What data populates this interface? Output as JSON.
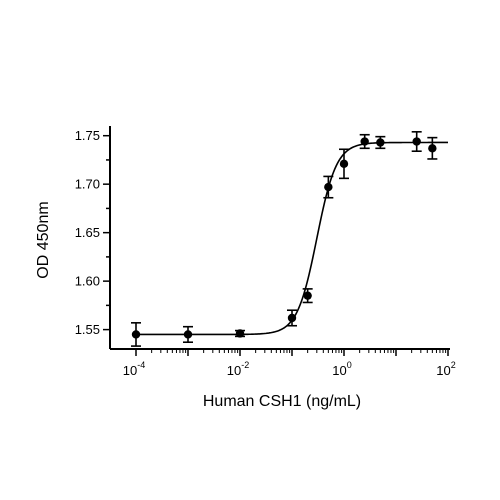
{
  "chart_data": {
    "type": "scatter",
    "title": "",
    "xlabel": "Human CSH1 (ng/mL)",
    "ylabel": "OD 450nm",
    "xscale": "log",
    "xlim": [
      0.0001,
      100
    ],
    "ylim": [
      1.53,
      1.76
    ],
    "grid": false,
    "legend": "none",
    "x_ticks": [
      {
        "value": 0.0001,
        "base": "10",
        "exp": "-4"
      },
      {
        "value": 0.01,
        "base": "10",
        "exp": "-2"
      },
      {
        "value": 1,
        "base": "10",
        "exp": "0"
      },
      {
        "value": 100,
        "base": "10",
        "exp": "2"
      }
    ],
    "y_ticks": [
      {
        "value": 1.55,
        "label": "1.55"
      },
      {
        "value": 1.6,
        "label": "1.60"
      },
      {
        "value": 1.65,
        "label": "1.65"
      },
      {
        "value": 1.7,
        "label": "1.70"
      },
      {
        "value": 1.75,
        "label": "1.75"
      }
    ],
    "series": [
      {
        "color": "#000000",
        "points": [
          {
            "x": 0.0001,
            "y": 1.545,
            "err": 0.012
          },
          {
            "x": 0.001,
            "y": 1.545,
            "err": 0.008
          },
          {
            "x": 0.01,
            "y": 1.546,
            "err": 0.003
          },
          {
            "x": 0.1,
            "y": 1.562,
            "err": 0.008
          },
          {
            "x": 0.2,
            "y": 1.585,
            "err": 0.007
          },
          {
            "x": 0.5,
            "y": 1.697,
            "err": 0.011
          },
          {
            "x": 1.0,
            "y": 1.721,
            "err": 0.015
          },
          {
            "x": 2.5,
            "y": 1.744,
            "err": 0.007
          },
          {
            "x": 5.0,
            "y": 1.743,
            "err": 0.006
          },
          {
            "x": 25,
            "y": 1.744,
            "err": 0.01
          },
          {
            "x": 50,
            "y": 1.737,
            "err": 0.011
          }
        ],
        "fit": {
          "bottom": 1.545,
          "top": 1.743,
          "ec50": 0.3,
          "hill": 2.3
        }
      }
    ]
  }
}
